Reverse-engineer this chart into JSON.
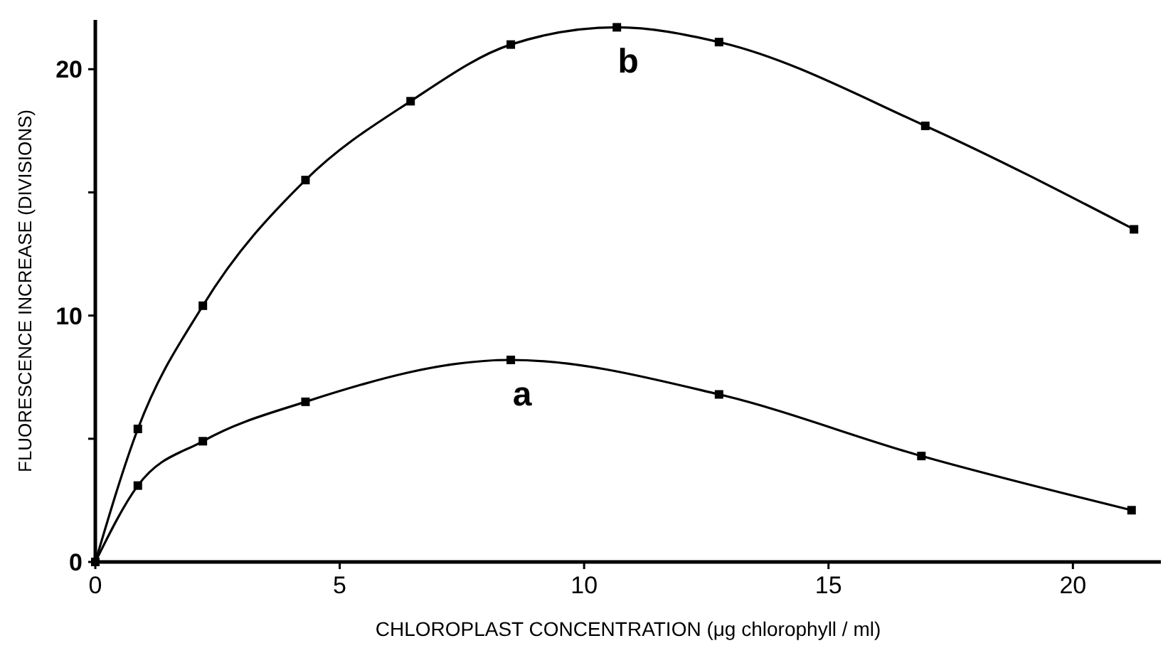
{
  "chart_data": {
    "type": "line",
    "xlabel": "CHLOROPLAST CONCENTRATION (μg chlorophyll / ml)",
    "ylabel": "FLUORESCENCE INCREASE (DIVISIONS)",
    "xlim": [
      0,
      21.8
    ],
    "ylim": [
      0,
      22
    ],
    "xticks": [
      0,
      5,
      10,
      15,
      20
    ],
    "yticks": [
      0,
      {
        "value": 5,
        "label": null
      },
      10,
      {
        "value": 15,
        "label": null
      },
      20
    ],
    "marker": "square",
    "line_style": "solid",
    "grid": false,
    "series": [
      {
        "name": "a",
        "color": "#000000",
        "x": [
          0,
          0.87,
          2.2,
          4.3,
          8.5,
          12.76,
          16.9,
          21.2
        ],
        "values": [
          0,
          3.1,
          4.9,
          6.5,
          8.2,
          6.8,
          4.3,
          2.1
        ]
      },
      {
        "name": "b",
        "color": "#000000",
        "x": [
          0,
          0.87,
          2.2,
          4.3,
          6.45,
          8.5,
          10.67,
          12.76,
          16.98,
          21.25
        ],
        "values": [
          0,
          5.4,
          10.4,
          15.5,
          18.7,
          21.0,
          21.7,
          21.1,
          17.7,
          13.5
        ]
      }
    ]
  }
}
